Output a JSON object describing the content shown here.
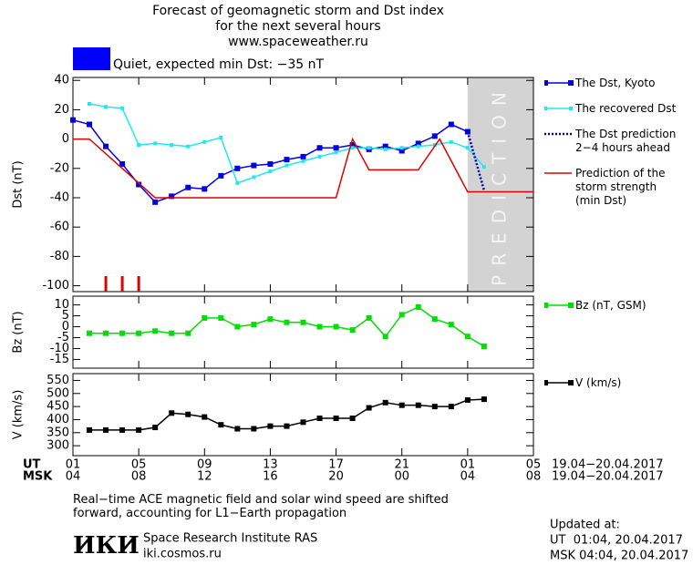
{
  "header": {
    "title": [
      "Forecast of geomagnetic storm and Dst index",
      "for the next several hours",
      "www.spaceweather.ru"
    ]
  },
  "quiet": {
    "label": "Quiet, expected min Dst: −35 nT",
    "color": "#0000ff"
  },
  "x_axis": {
    "xlim": [
      0,
      28
    ],
    "xticks": [
      {
        "value": 0,
        "label": "01"
      },
      {
        "value": 4,
        "label": "05"
      },
      {
        "value": 8,
        "label": "09"
      },
      {
        "value": 12,
        "label": "13"
      },
      {
        "value": 16,
        "label": "17"
      },
      {
        "value": 20,
        "label": "21"
      },
      {
        "value": 24,
        "label": "01"
      },
      {
        "value": 28,
        "label": "05"
      }
    ],
    "msk_labels": [
      "04",
      "08",
      "12",
      "16",
      "20",
      "00",
      "04",
      "08"
    ],
    "rows": [
      "UT",
      "MSK"
    ],
    "dates": [
      "19.04−20.04.2017",
      "19.04−20.04.2017"
    ]
  },
  "chart_data": [
    {
      "type": "line",
      "ylabel": "Dst (nT)",
      "ylim": [
        -104,
        42
      ],
      "yticks": [
        40,
        20,
        0,
        -20,
        -40,
        -60,
        -80,
        -100
      ],
      "prediction_band": {
        "label": "PREDICTION",
        "x": [
          24,
          28
        ],
        "color": "#d3d3d3"
      },
      "storm_marks": {
        "color": "#e00000",
        "x": [
          2,
          3,
          4
        ]
      },
      "series": [
        {
          "name": "The Dst, Kyoto",
          "color": "#0000e0",
          "marker": "square",
          "style": "solid",
          "x": [
            0,
            1,
            2,
            3,
            4,
            5,
            6,
            7,
            8,
            9,
            10,
            11,
            12,
            13,
            14,
            15,
            16,
            17,
            18,
            19,
            20,
            21,
            22,
            23,
            24
          ],
          "values": [
            13,
            10,
            -5,
            -17,
            -31,
            -43,
            -39,
            -33,
            -34,
            -25,
            -20,
            -18,
            -17,
            -14,
            -12,
            -6,
            -6,
            -4,
            -7,
            -5,
            -8,
            -3,
            2,
            10,
            5
          ]
        },
        {
          "name": "The recovered Dst",
          "color": "#20e8f0",
          "marker": "small-square",
          "style": "solid",
          "x": [
            1,
            2,
            3,
            4,
            5,
            6,
            7,
            8,
            9,
            10,
            11,
            12,
            13,
            14,
            15,
            16,
            17,
            18,
            19,
            20,
            21,
            22,
            23,
            24,
            25
          ],
          "values": [
            24,
            22,
            21,
            -4,
            -3,
            -4,
            -5,
            -2,
            1,
            -30,
            -26,
            -22,
            -18,
            -15,
            -12,
            -9,
            -6,
            -6,
            -7,
            -6,
            -5,
            -4,
            -2,
            -6,
            -19
          ]
        },
        {
          "name": "The Dst prediction\n2−4 hours ahead",
          "color": "#0000c0",
          "marker": "none",
          "style": "dotted",
          "x": [
            24,
            25
          ],
          "values": [
            5,
            -35
          ]
        },
        {
          "name": "Prediction of the\nstorm strength\n(min Dst)",
          "color": "#e00000",
          "marker": "none",
          "style": "solid",
          "x": [
            0,
            1,
            5,
            16,
            17,
            18,
            21,
            22.3,
            24,
            28
          ],
          "values": [
            0,
            0,
            -40,
            -40,
            0,
            -21,
            -21,
            0,
            -36,
            -36
          ]
        }
      ]
    },
    {
      "type": "line",
      "ylabel": "Bz (nT)",
      "ylim": [
        -19,
        14
      ],
      "yticks": [
        10,
        5,
        0,
        -5,
        -10,
        -15
      ],
      "series": [
        {
          "name": "Bz (nT, GSM)",
          "color": "#00e000",
          "marker": "square",
          "style": "solid",
          "x": [
            1,
            2,
            3,
            4,
            5,
            6,
            7,
            8,
            9,
            10,
            11,
            12,
            13,
            14,
            15,
            16,
            17,
            18,
            19,
            20,
            21,
            22,
            23,
            24,
            25
          ],
          "values": [
            -3,
            -3,
            -3,
            -3,
            -2,
            -3,
            -3,
            4,
            4,
            0,
            1,
            3.5,
            2,
            2,
            0,
            0,
            -1.5,
            4,
            -4.5,
            5.5,
            9,
            3.5,
            1,
            -4.5,
            -9
          ]
        }
      ]
    },
    {
      "type": "line",
      "ylabel": "V (km/s)",
      "ylim": [
        262,
        576
      ],
      "yticks": [
        550,
        500,
        450,
        400,
        350,
        300
      ],
      "series": [
        {
          "name": "V (km/s)",
          "color": "#000000",
          "marker": "square",
          "style": "solid",
          "x": [
            1,
            2,
            3,
            4,
            5,
            6,
            7,
            8,
            9,
            10,
            11,
            12,
            13,
            14,
            15,
            16,
            17,
            18,
            19,
            20,
            21,
            22,
            23,
            24,
            25
          ],
          "values": [
            360,
            360,
            360,
            360,
            370,
            425,
            420,
            410,
            380,
            365,
            365,
            375,
            375,
            390,
            405,
            405,
            405,
            445,
            465,
            455,
            455,
            450,
            450,
            475,
            478
          ]
        }
      ]
    }
  ],
  "footer": {
    "note": "Real−time ACE magnetic field and solar wind speed are shifted\nforward, accounting for L1−Earth propagation",
    "logo": "ИКИ",
    "institute": "Space Research Institute RAS",
    "site": "iki.cosmos.ru",
    "updated": [
      "Updated at:",
      "UT  01:04, 20.04.2017",
      "MSK 04:04, 20.04.2017"
    ]
  }
}
